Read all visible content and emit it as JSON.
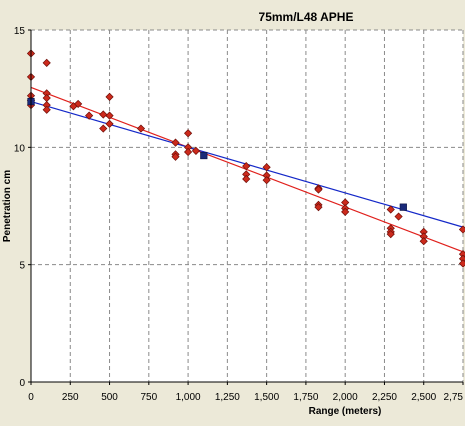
{
  "chart_data": {
    "type": "scatter",
    "title": "75mm/L48 APHE",
    "xlabel": "Range (meters)",
    "ylabel": "Penetration cm",
    "xlim": [
      0,
      2750
    ],
    "ylim": [
      0,
      15
    ],
    "x_ticks": [
      "0",
      "250",
      "500",
      "750",
      "1,000",
      "1,250",
      "1,500",
      "1,750",
      "2,000",
      "2,250",
      "2,500",
      "2,75"
    ],
    "y_ticks": [
      "0",
      "5",
      "10",
      "15"
    ],
    "grid": true,
    "colors": {
      "background": "#ece9d8",
      "plot_area": "#ffffff",
      "grid": "#8a8a8a",
      "points": "#cc2a1c",
      "point_outline": "#6e0e08",
      "trend_red": "#e0201c",
      "trend_blue": "#1428c8",
      "blue_markers": "#1a2a7a"
    },
    "series": [
      {
        "marker": "diamond",
        "points": [
          [
            0,
            14.0
          ],
          [
            0,
            13.0
          ],
          [
            0,
            12.2
          ],
          [
            0,
            12.0
          ],
          [
            0,
            11.8
          ],
          [
            100,
            13.6
          ],
          [
            100,
            12.3
          ],
          [
            100,
            12.1
          ],
          [
            100,
            11.8
          ],
          [
            100,
            11.6
          ],
          [
            270,
            11.75
          ],
          [
            300,
            11.85
          ],
          [
            370,
            11.35
          ],
          [
            460,
            11.4
          ],
          [
            460,
            10.8
          ],
          [
            500,
            11.35
          ],
          [
            500,
            11.0
          ],
          [
            500,
            12.15
          ],
          [
            700,
            10.8
          ],
          [
            920,
            10.2
          ],
          [
            920,
            9.7
          ],
          [
            920,
            9.6
          ],
          [
            1000,
            10.6
          ],
          [
            1000,
            10.0
          ],
          [
            1000,
            9.8
          ],
          [
            1050,
            9.85
          ],
          [
            1370,
            9.2
          ],
          [
            1370,
            8.85
          ],
          [
            1370,
            8.65
          ],
          [
            1500,
            9.15
          ],
          [
            1500,
            8.8
          ],
          [
            1500,
            8.6
          ],
          [
            1830,
            8.25
          ],
          [
            1830,
            8.2
          ],
          [
            1830,
            7.55
          ],
          [
            1830,
            7.45
          ],
          [
            2000,
            7.65
          ],
          [
            2000,
            7.4
          ],
          [
            2000,
            7.25
          ],
          [
            2290,
            7.35
          ],
          [
            2290,
            6.55
          ],
          [
            2290,
            6.4
          ],
          [
            2290,
            6.3
          ],
          [
            2340,
            7.05
          ],
          [
            2500,
            6.4
          ],
          [
            2500,
            6.2
          ],
          [
            2500,
            6.0
          ],
          [
            2750,
            6.5
          ],
          [
            2750,
            5.45
          ],
          [
            2750,
            5.25
          ],
          [
            2750,
            5.05
          ]
        ]
      },
      {
        "marker": "square",
        "points": [
          [
            0,
            11.95
          ],
          [
            1100,
            9.65
          ],
          [
            2370,
            7.45
          ]
        ]
      }
    ],
    "trendlines": [
      {
        "color": "red",
        "from": [
          0,
          12.55
        ],
        "to": [
          2750,
          5.55
        ]
      },
      {
        "color": "blue",
        "from": [
          0,
          11.95
        ],
        "to": [
          2750,
          6.6
        ]
      }
    ]
  }
}
